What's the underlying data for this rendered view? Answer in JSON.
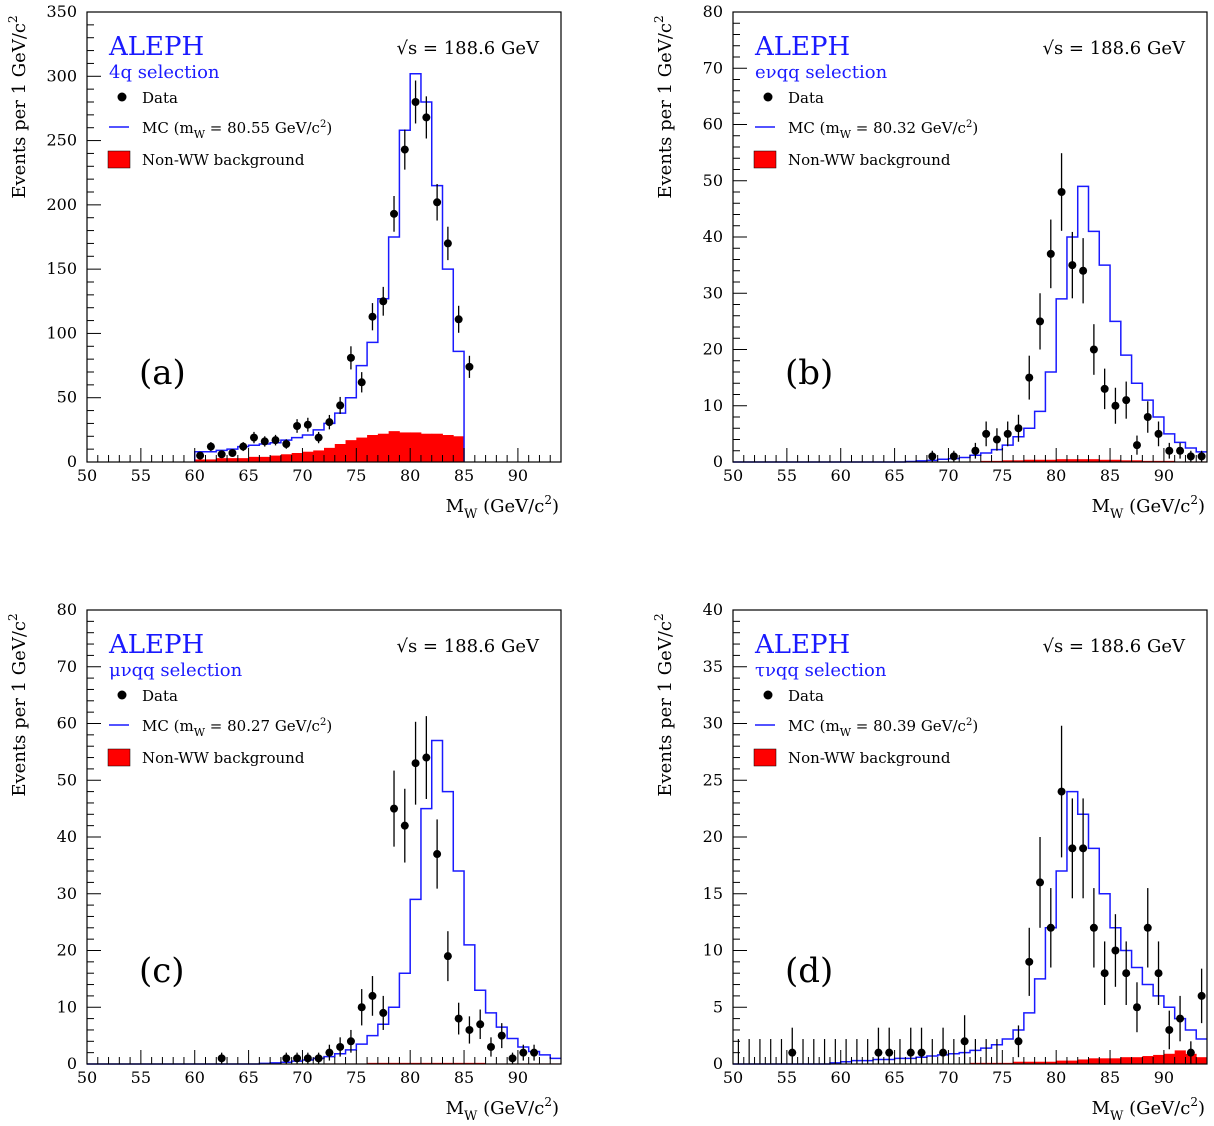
{
  "chart_data": [
    {
      "type": "line",
      "panel_tag": "(a)",
      "experiment": "ALEPH",
      "selection": "4q selection",
      "energy": "√s = 188.6 GeV",
      "xlabel": "M_W (GeV/c²)",
      "ylabel": "Events per 1 GeV/c²",
      "xlim": [
        50,
        94
      ],
      "ylim": [
        0,
        350
      ],
      "xticks": [
        50,
        55,
        60,
        65,
        70,
        75,
        80,
        85,
        90
      ],
      "yticks": [
        0,
        50,
        100,
        150,
        200,
        250,
        300,
        350
      ],
      "legend": {
        "data": "Data",
        "mc": "MC (m_W = 80.55 GeV/c²)",
        "bkg": "Non-WW background"
      },
      "colors": {
        "mc": "#1a1aff",
        "bkg": "#ff0000",
        "data": "#000000"
      },
      "mc_hist": {
        "x0": 60,
        "values": [
          8,
          8,
          9,
          10,
          12,
          13,
          14,
          15,
          17,
          19,
          21,
          25,
          30,
          38,
          50,
          75,
          93,
          127,
          175,
          258,
          302,
          280,
          215,
          150,
          86
        ]
      },
      "bkg_hist": {
        "x0": 60,
        "values": [
          2,
          2,
          3,
          3,
          3,
          4,
          4,
          5,
          6,
          7,
          8,
          9,
          11,
          14,
          17,
          19,
          21,
          22,
          24,
          23,
          23,
          22,
          22,
          21,
          20
        ]
      },
      "data_points": [
        {
          "x": 60.5,
          "y": 5,
          "err": 2
        },
        {
          "x": 61.5,
          "y": 12,
          "err": 3.5
        },
        {
          "x": 62.5,
          "y": 6,
          "err": 2.5
        },
        {
          "x": 63.5,
          "y": 7,
          "err": 2.6
        },
        {
          "x": 64.5,
          "y": 12,
          "err": 3.5
        },
        {
          "x": 65.5,
          "y": 19,
          "err": 4.4
        },
        {
          "x": 66.5,
          "y": 16,
          "err": 4
        },
        {
          "x": 67.5,
          "y": 17,
          "err": 4.1
        },
        {
          "x": 68.5,
          "y": 14,
          "err": 3.7
        },
        {
          "x": 69.5,
          "y": 28,
          "err": 5.3
        },
        {
          "x": 70.5,
          "y": 29,
          "err": 5.4
        },
        {
          "x": 71.5,
          "y": 19,
          "err": 4.4
        },
        {
          "x": 72.5,
          "y": 31,
          "err": 5.6
        },
        {
          "x": 73.5,
          "y": 44,
          "err": 6.6
        },
        {
          "x": 74.5,
          "y": 81,
          "err": 9
        },
        {
          "x": 75.5,
          "y": 62,
          "err": 7.9
        },
        {
          "x": 76.5,
          "y": 113,
          "err": 10.6
        },
        {
          "x": 77.5,
          "y": 125,
          "err": 11.2
        },
        {
          "x": 78.5,
          "y": 193,
          "err": 13.9
        },
        {
          "x": 79.5,
          "y": 243,
          "err": 15.6
        },
        {
          "x": 80.5,
          "y": 280,
          "err": 16.7
        },
        {
          "x": 81.5,
          "y": 268,
          "err": 16.4
        },
        {
          "x": 82.5,
          "y": 202,
          "err": 14.2
        },
        {
          "x": 83.5,
          "y": 170,
          "err": 13
        },
        {
          "x": 84.5,
          "y": 111,
          "err": 10.5
        },
        {
          "x": 85.5,
          "y": 74,
          "err": 8.6
        }
      ]
    },
    {
      "type": "line",
      "panel_tag": "(b)",
      "experiment": "ALEPH",
      "selection": "eνqq selection",
      "energy": "√s = 188.6 GeV",
      "xlabel": "M_W (GeV/c²)",
      "ylabel": "Events per 1 GeV/c²",
      "xlim": [
        50,
        94
      ],
      "ylim": [
        0,
        80
      ],
      "xticks": [
        50,
        55,
        60,
        65,
        70,
        75,
        80,
        85,
        90
      ],
      "yticks": [
        0,
        10,
        20,
        30,
        40,
        50,
        60,
        70,
        80
      ],
      "legend": {
        "data": "Data",
        "mc": "MC (m_W = 80.32 GeV/c²)",
        "bkg": "Non-WW background"
      },
      "colors": {
        "mc": "#1a1aff",
        "bkg": "#ff0000",
        "data": "#000000"
      },
      "mc_hist": {
        "x0": 50,
        "values": [
          0,
          0,
          0,
          0,
          0,
          0,
          0,
          0,
          0,
          0,
          0,
          0,
          0,
          0,
          0,
          0,
          0.1,
          0.2,
          0.3,
          0.5,
          0.6,
          0.8,
          1.2,
          1.6,
          2.2,
          3,
          4.5,
          6,
          9,
          16,
          29,
          40,
          49,
          41,
          35,
          25,
          19,
          14,
          11,
          8,
          5,
          3.5,
          2.5,
          1.8
        ]
      },
      "bkg_hist": {
        "x0": 50,
        "values": [
          0,
          0,
          0,
          0,
          0,
          0,
          0,
          0,
          0,
          0,
          0,
          0,
          0,
          0,
          0,
          0,
          0,
          0,
          0,
          0,
          0,
          0,
          0.1,
          0.2,
          0.2,
          0.3,
          0.3,
          0.4,
          0.4,
          0.4,
          0.5,
          0.5,
          0.5,
          0.5,
          0.4,
          0.4,
          0.3,
          0.3,
          0.2,
          0.2,
          0.2,
          0.1,
          0.1,
          0.1
        ]
      },
      "data_points": [
        {
          "x": 68.5,
          "y": 1,
          "err": 1
        },
        {
          "x": 70.5,
          "y": 1,
          "err": 1
        },
        {
          "x": 72.5,
          "y": 2,
          "err": 1.4
        },
        {
          "x": 73.5,
          "y": 5,
          "err": 2.2
        },
        {
          "x": 74.5,
          "y": 4,
          "err": 2
        },
        {
          "x": 75.5,
          "y": 5,
          "err": 2.2
        },
        {
          "x": 76.5,
          "y": 6,
          "err": 2.4
        },
        {
          "x": 77.5,
          "y": 15,
          "err": 3.9
        },
        {
          "x": 78.5,
          "y": 25,
          "err": 5
        },
        {
          "x": 79.5,
          "y": 37,
          "err": 6.1
        },
        {
          "x": 80.5,
          "y": 48,
          "err": 6.9
        },
        {
          "x": 81.5,
          "y": 35,
          "err": 5.9
        },
        {
          "x": 82.5,
          "y": 34,
          "err": 5.8
        },
        {
          "x": 83.5,
          "y": 20,
          "err": 4.5
        },
        {
          "x": 84.5,
          "y": 13,
          "err": 3.6
        },
        {
          "x": 85.5,
          "y": 10,
          "err": 3.2
        },
        {
          "x": 86.5,
          "y": 11,
          "err": 3.3
        },
        {
          "x": 87.5,
          "y": 3,
          "err": 1.7
        },
        {
          "x": 88.5,
          "y": 8,
          "err": 2.8
        },
        {
          "x": 89.5,
          "y": 5,
          "err": 2.2
        },
        {
          "x": 90.5,
          "y": 2,
          "err": 1.4
        },
        {
          "x": 91.5,
          "y": 2,
          "err": 1.4
        },
        {
          "x": 92.5,
          "y": 1,
          "err": 1
        },
        {
          "x": 93.5,
          "y": 1,
          "err": 1
        }
      ]
    },
    {
      "type": "line",
      "panel_tag": "(c)",
      "experiment": "ALEPH",
      "selection": "μνqq selection",
      "energy": "√s = 188.6 GeV",
      "xlabel": "M_W (GeV/c²)",
      "ylabel": "Events per 1 GeV/c²",
      "xlim": [
        50,
        94
      ],
      "ylim": [
        0,
        80
      ],
      "xticks": [
        50,
        55,
        60,
        65,
        70,
        75,
        80,
        85,
        90
      ],
      "yticks": [
        0,
        10,
        20,
        30,
        40,
        50,
        60,
        70,
        80
      ],
      "legend": {
        "data": "Data",
        "mc": "MC (m_W = 80.27 GeV/c²)",
        "bkg": "Non-WW background"
      },
      "colors": {
        "mc": "#1a1aff",
        "bkg": "#ff0000",
        "data": "#000000"
      },
      "mc_hist": {
        "x0": 50,
        "values": [
          0,
          0,
          0,
          0,
          0,
          0,
          0,
          0,
          0,
          0,
          0,
          0,
          0,
          0,
          0,
          0,
          0.1,
          0.2,
          0.3,
          0.5,
          0.7,
          1,
          1.3,
          1.8,
          2.5,
          3.5,
          5,
          7,
          10,
          16,
          29,
          45,
          57,
          48,
          34,
          21,
          13,
          9,
          6.5,
          4.5,
          3,
          2.2,
          1.6,
          1
        ]
      },
      "bkg_hist": {
        "x0": 50,
        "values": [
          0,
          0,
          0,
          0,
          0,
          0,
          0,
          0,
          0,
          0,
          0,
          0,
          0,
          0,
          0,
          0,
          0,
          0,
          0,
          0,
          0,
          0,
          0.1,
          0.1,
          0.1,
          0.1,
          0.2,
          0.2,
          0.2,
          0.2,
          0.2,
          0.2,
          0.2,
          0.2,
          0.2,
          0.2,
          0.2,
          0.1,
          0.1,
          0.1,
          0.1,
          0.1,
          0.1,
          0.1
        ]
      },
      "data_points": [
        {
          "x": 62.5,
          "y": 1,
          "err": 1
        },
        {
          "x": 68.5,
          "y": 1,
          "err": 1
        },
        {
          "x": 69.5,
          "y": 1,
          "err": 1
        },
        {
          "x": 70.5,
          "y": 1,
          "err": 1
        },
        {
          "x": 71.5,
          "y": 1,
          "err": 1
        },
        {
          "x": 72.5,
          "y": 2,
          "err": 1.4
        },
        {
          "x": 73.5,
          "y": 3,
          "err": 1.7
        },
        {
          "x": 74.5,
          "y": 4,
          "err": 2
        },
        {
          "x": 75.5,
          "y": 10,
          "err": 3.2
        },
        {
          "x": 76.5,
          "y": 12,
          "err": 3.5
        },
        {
          "x": 77.5,
          "y": 9,
          "err": 3
        },
        {
          "x": 78.5,
          "y": 45,
          "err": 6.7
        },
        {
          "x": 79.5,
          "y": 42,
          "err": 6.5
        },
        {
          "x": 80.5,
          "y": 53,
          "err": 7.3
        },
        {
          "x": 81.5,
          "y": 54,
          "err": 7.3
        },
        {
          "x": 82.5,
          "y": 37,
          "err": 6.1
        },
        {
          "x": 83.5,
          "y": 19,
          "err": 4.4
        },
        {
          "x": 84.5,
          "y": 8,
          "err": 2.8
        },
        {
          "x": 85.5,
          "y": 6,
          "err": 2.4
        },
        {
          "x": 86.5,
          "y": 7,
          "err": 2.6
        },
        {
          "x": 87.5,
          "y": 3,
          "err": 1.7
        },
        {
          "x": 88.5,
          "y": 5,
          "err": 2.2
        },
        {
          "x": 89.5,
          "y": 1,
          "err": 1
        },
        {
          "x": 90.5,
          "y": 2,
          "err": 1.4
        },
        {
          "x": 91.5,
          "y": 2,
          "err": 1.4
        }
      ]
    },
    {
      "type": "line",
      "panel_tag": "(d)",
      "experiment": "ALEPH",
      "selection": "τνqq selection",
      "energy": "√s = 188.6 GeV",
      "xlabel": "M_W (GeV/c²)",
      "ylabel": "Events per 1 GeV/c²",
      "xlim": [
        50,
        94
      ],
      "ylim": [
        0,
        40
      ],
      "xticks": [
        50,
        55,
        60,
        65,
        70,
        75,
        80,
        85,
        90
      ],
      "yticks": [
        0,
        5,
        10,
        15,
        20,
        25,
        30,
        35,
        40
      ],
      "legend": {
        "data": "Data",
        "mc": "MC (m_W = 80.39 GeV/c²)",
        "bkg": "Non-WW background"
      },
      "colors": {
        "mc": "#1a1aff",
        "bkg": "#ff0000",
        "data": "#000000"
      },
      "mc_hist": {
        "x0": 50,
        "values": [
          0,
          0,
          0,
          0,
          0,
          0,
          0,
          0,
          0,
          0.1,
          0.2,
          0.3,
          0.3,
          0.4,
          0.4,
          0.5,
          0.5,
          0.6,
          0.7,
          0.8,
          0.9,
          1,
          1.2,
          1.4,
          1.7,
          2.2,
          3,
          4.5,
          7.5,
          12,
          17,
          24,
          22,
          19,
          15,
          12,
          10,
          8.5,
          7,
          6,
          5,
          4,
          3,
          2.2
        ]
      },
      "bkg_hist": {
        "x0": 50,
        "values": [
          0,
          0,
          0,
          0,
          0,
          0,
          0,
          0,
          0,
          0,
          0,
          0,
          0,
          0,
          0,
          0,
          0,
          0,
          0,
          0,
          0,
          0,
          0.1,
          0.1,
          0.1,
          0.1,
          0.2,
          0.2,
          0.2,
          0.2,
          0.3,
          0.3,
          0.4,
          0.5,
          0.5,
          0.5,
          0.6,
          0.6,
          0.7,
          0.8,
          0.9,
          1.2,
          0.9,
          0.6
        ]
      },
      "data_points": [
        {
          "x": 55.5,
          "y": 1,
          "err": 2.2
        },
        {
          "x": 63.5,
          "y": 1,
          "err": 2.2
        },
        {
          "x": 64.5,
          "y": 1,
          "err": 2.2
        },
        {
          "x": 66.5,
          "y": 1,
          "err": 2.2
        },
        {
          "x": 67.5,
          "y": 1,
          "err": 2.2
        },
        {
          "x": 69.5,
          "y": 1,
          "err": 2.2
        },
        {
          "x": 71.5,
          "y": 2,
          "err": 2.3
        },
        {
          "x": 76.5,
          "y": 2,
          "err": 1.4
        },
        {
          "x": 77.5,
          "y": 9,
          "err": 3
        },
        {
          "x": 78.5,
          "y": 16,
          "err": 4
        },
        {
          "x": 79.5,
          "y": 12,
          "err": 3.5
        },
        {
          "x": 80.5,
          "y": 24,
          "err": 5.8
        },
        {
          "x": 81.5,
          "y": 19,
          "err": 4.4
        },
        {
          "x": 82.5,
          "y": 19,
          "err": 4.4
        },
        {
          "x": 83.5,
          "y": 12,
          "err": 3.5
        },
        {
          "x": 84.5,
          "y": 8,
          "err": 2.8
        },
        {
          "x": 85.5,
          "y": 10,
          "err": 3.2
        },
        {
          "x": 86.5,
          "y": 8,
          "err": 2.8
        },
        {
          "x": 87.5,
          "y": 5,
          "err": 2.2
        },
        {
          "x": 88.5,
          "y": 12,
          "err": 3.5
        },
        {
          "x": 89.5,
          "y": 8,
          "err": 2.8
        },
        {
          "x": 90.5,
          "y": 3,
          "err": 1.7
        },
        {
          "x": 91.5,
          "y": 4,
          "err": 2
        },
        {
          "x": 92.5,
          "y": 1,
          "err": 1
        },
        {
          "x": 93.5,
          "y": 6,
          "err": 2.4
        }
      ],
      "empty_bin_errors": {
        "x_from": 50.5,
        "x_to": 74.5,
        "err": 2.2
      }
    }
  ]
}
